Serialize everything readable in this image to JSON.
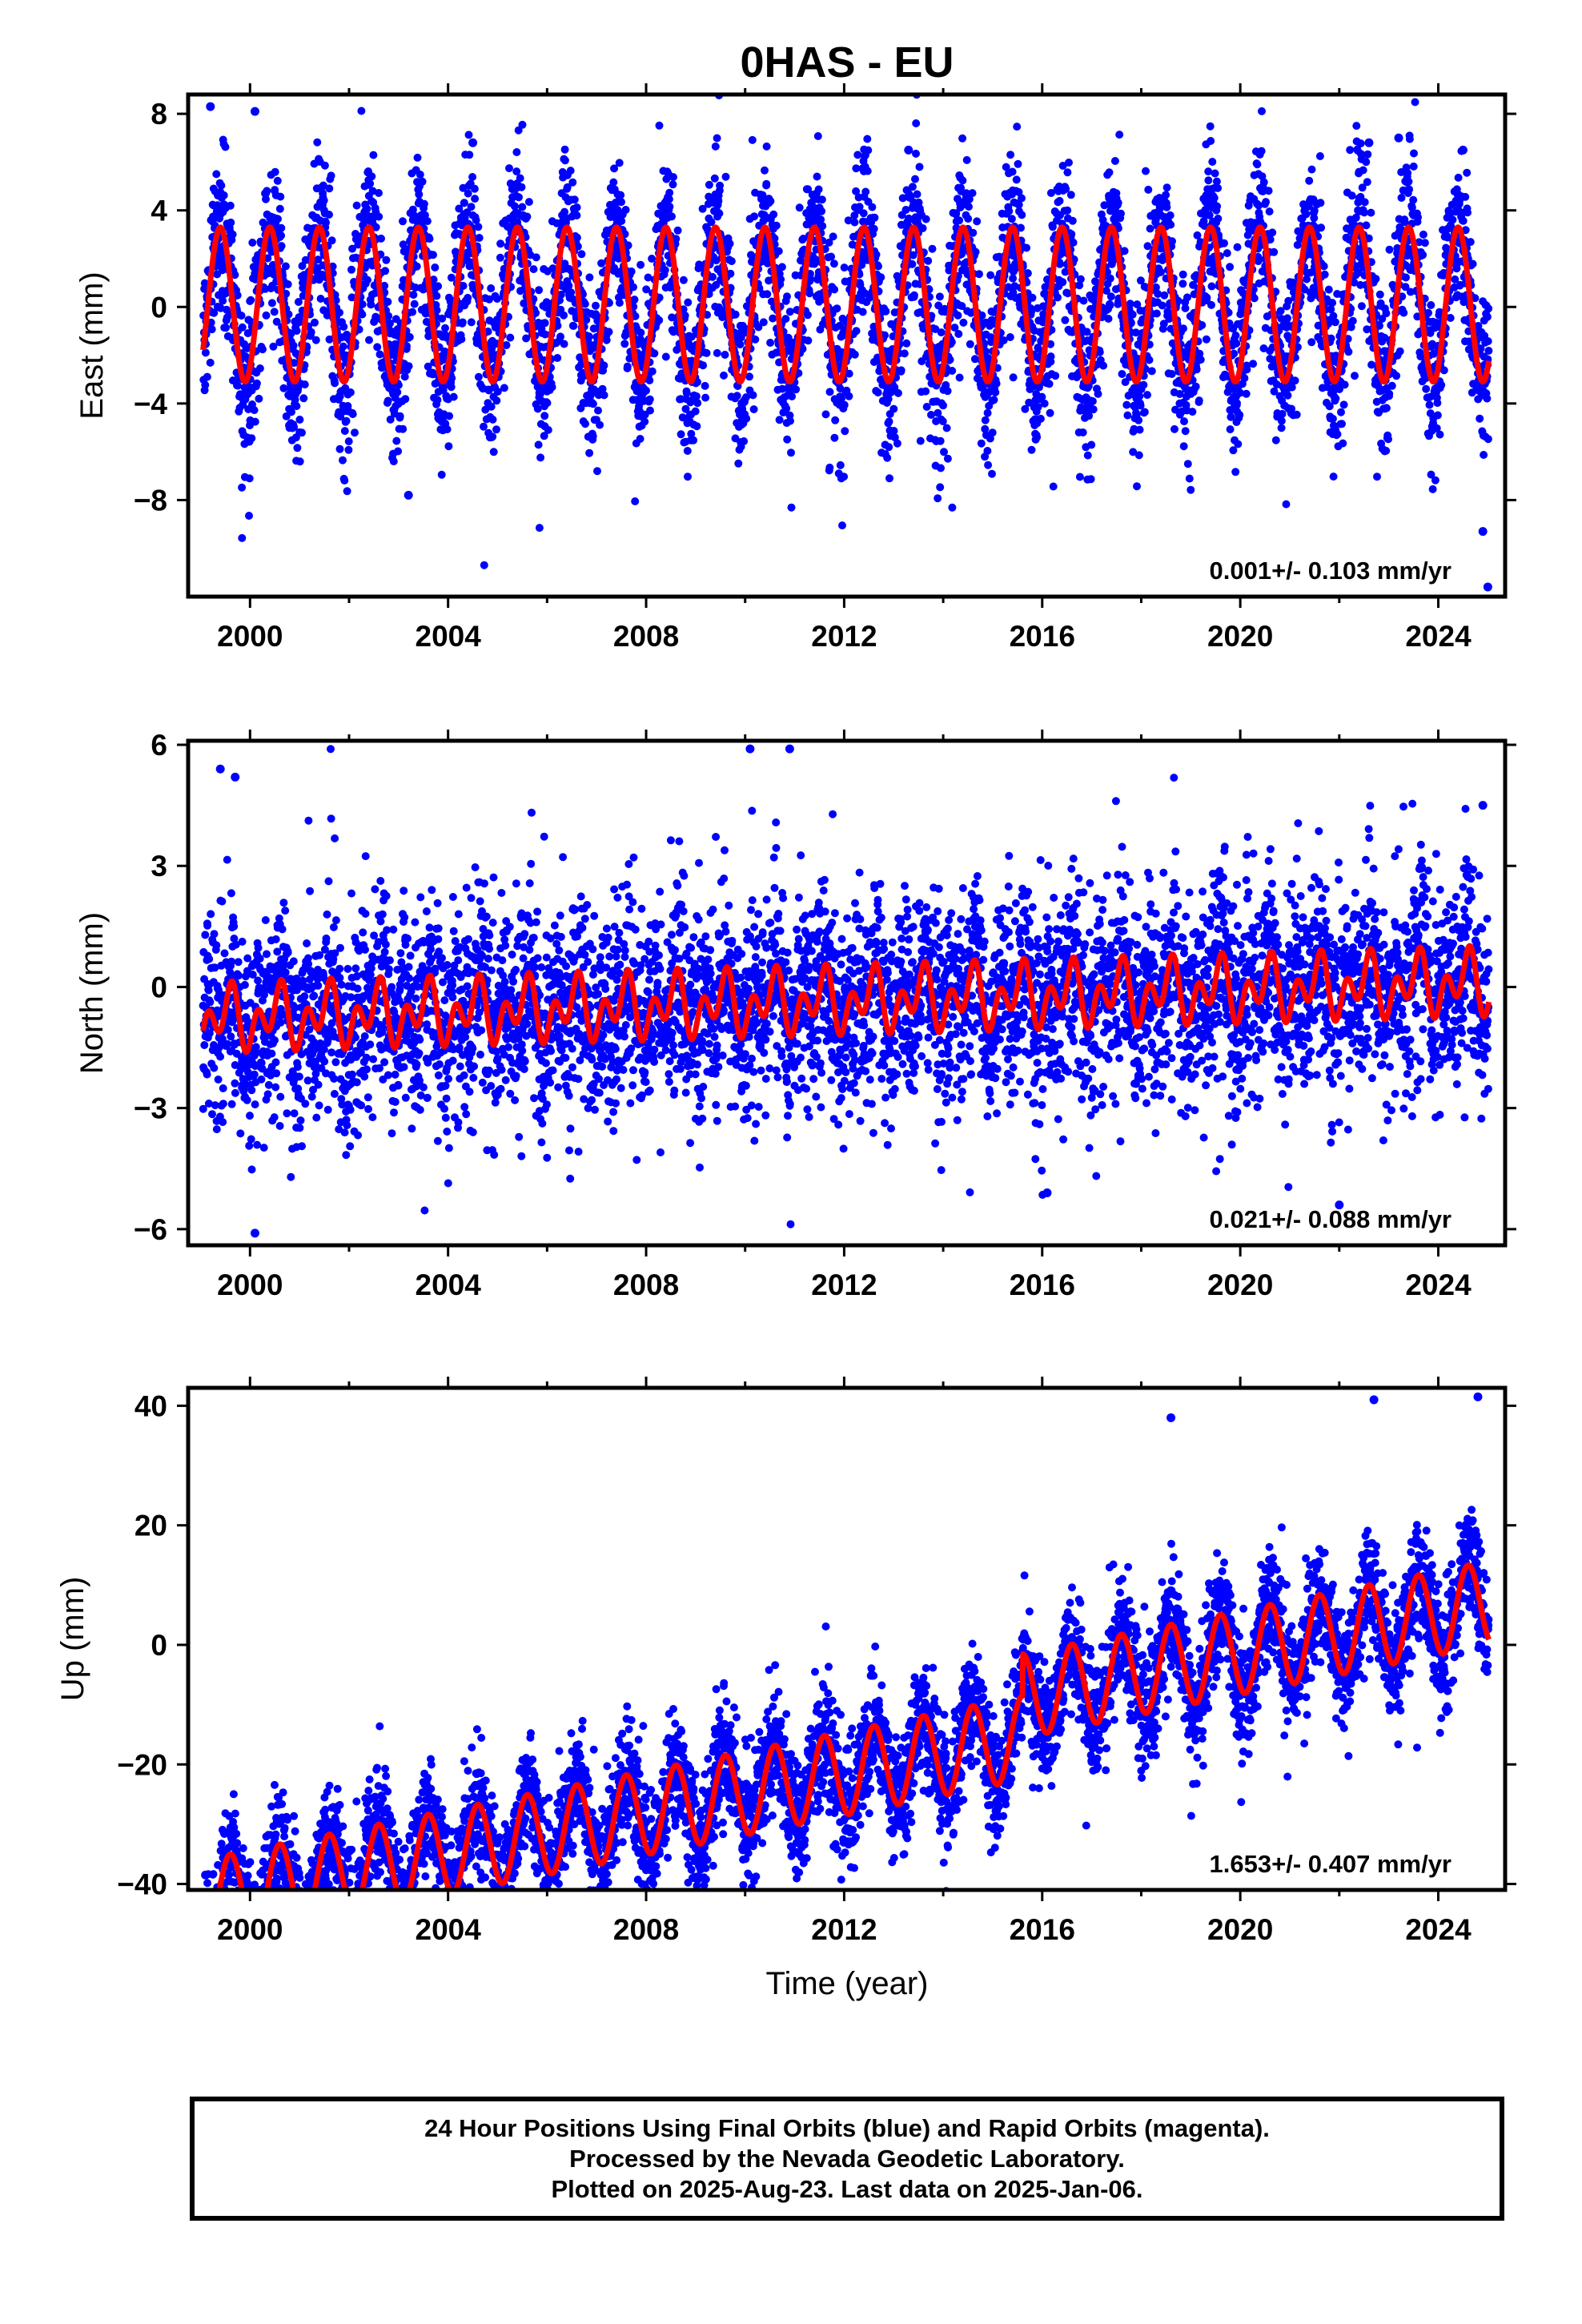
{
  "title": "0HAS - EU",
  "xlabel": "Time (year)",
  "footer": {
    "line1": "24 Hour Positions Using Final Orbits (blue) and Rapid Orbits (magenta).",
    "line2": "Processed by the Nevada Geodetic Laboratory.",
    "line3": "Plotted on 2025-Aug-23. Last data on 2025-Jan-06."
  },
  "colors": {
    "data": "#0000ff",
    "model": "#ff0000",
    "frame": "#000000"
  },
  "chart_data": [
    {
      "type": "scatter",
      "component": "east",
      "ylabel": "East (mm)",
      "xlim": [
        1998.75,
        2025.35
      ],
      "ylim": [
        -12,
        8.8
      ],
      "xticks": [
        2000,
        2004,
        2008,
        2012,
        2016,
        2020,
        2024
      ],
      "yticks": [
        8,
        4,
        0,
        -4,
        -8
      ],
      "annotation": "0.001+/- 0.103 mm/yr",
      "rate_mm_per_yr": 0.001,
      "data_range": [
        1999.05,
        2025.02
      ],
      "model": {
        "offset": 0.1,
        "rate": 0.0,
        "annual_amp": 3.2,
        "annual_peak_frac": 0.4,
        "semi_amp": 0.0
      },
      "scatter_std": 1.6,
      "samples": [
        {
          "x": 1999.2,
          "y": 8.3
        },
        {
          "x": 2000.1,
          "y": 8.1
        },
        {
          "x": 2003.2,
          "y": -7.8
        },
        {
          "x": 2004.5,
          "y": 6.8
        },
        {
          "x": 2013.3,
          "y": 6.5
        },
        {
          "x": 2022.6,
          "y": 6.8
        },
        {
          "x": 2023.2,
          "y": 7.0
        },
        {
          "x": 2024.5,
          "y": 6.5
        },
        {
          "x": 2024.9,
          "y": -9.3
        },
        {
          "x": 2025.0,
          "y": -11.6
        }
      ]
    },
    {
      "type": "scatter",
      "component": "north",
      "ylabel": "North (mm)",
      "xlim": [
        1998.75,
        2025.35
      ],
      "ylim": [
        -6.4,
        6.1
      ],
      "xticks": [
        2000,
        2004,
        2008,
        2012,
        2016,
        2020,
        2024
      ],
      "yticks": [
        6,
        3,
        0,
        -3,
        -6
      ],
      "annotation": "0.021+/- 0.088 mm/yr",
      "rate_mm_per_yr": 0.021,
      "data_range": [
        1999.05,
        2025.02
      ],
      "model": {
        "offset": -0.35,
        "rate": 0.035,
        "annual_amp": 0.45,
        "annual_peak_frac": 0.55,
        "semi_amp": 0.55
      },
      "scatter_std": 1.2,
      "samples": [
        {
          "x": 1999.4,
          "y": 5.4
        },
        {
          "x": 1999.7,
          "y": 5.2
        },
        {
          "x": 2000.1,
          "y": -6.1
        },
        {
          "x": 2010.1,
          "y": 5.9
        },
        {
          "x": 2010.9,
          "y": 5.9
        },
        {
          "x": 2022.0,
          "y": -5.4
        },
        {
          "x": 2024.9,
          "y": 4.5
        },
        {
          "x": 2016.1,
          "y": -5.1
        }
      ]
    },
    {
      "type": "scatter",
      "component": "up",
      "ylabel": "Up (mm)",
      "xlim": [
        1998.75,
        2025.35
      ],
      "ylim": [
        -41,
        43
      ],
      "xticks": [
        2000,
        2004,
        2008,
        2012,
        2016,
        2020,
        2024
      ],
      "yticks": [
        40,
        20,
        0,
        -20,
        -40
      ],
      "annotation": "1.653+/- 0.407 mm/yr",
      "rate_mm_per_yr": 1.653,
      "data_range": [
        1999.05,
        2025.02
      ],
      "model": {
        "offset": -18,
        "rate": 1.653,
        "annual_amp": 7.0,
        "annual_peak_frac": 0.6,
        "semi_amp": 0.0,
        "step": {
          "at": 2015.6,
          "size": 7
        }
      },
      "scatter_std": 4.8,
      "samples": [
        {
          "x": 1999.1,
          "y": -38.5
        },
        {
          "x": 1999.9,
          "y": -39.8
        },
        {
          "x": 2001.9,
          "y": -38.7
        },
        {
          "x": 2015.1,
          "y": -26.0
        },
        {
          "x": 2022.7,
          "y": 41.0
        },
        {
          "x": 2024.8,
          "y": 41.5
        },
        {
          "x": 2018.6,
          "y": 38.0
        }
      ]
    }
  ]
}
